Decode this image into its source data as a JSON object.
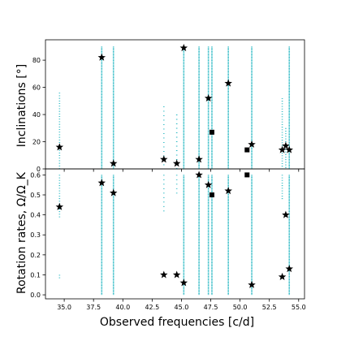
{
  "chart_data": [
    {
      "type": "scatter",
      "panel": "top",
      "ylabel": "Inclinations [°]",
      "xlim": [
        33.4,
        55.5
      ],
      "ylim": [
        0,
        95
      ],
      "yticks": [
        0,
        20,
        40,
        60,
        80
      ],
      "grid": false,
      "colors": {
        "line_points": "#26b7c2",
        "star": "#000000",
        "square": "#000000"
      },
      "dotted_lines": [
        {
          "x": 34.6,
          "ymin": 0,
          "ymax": 56,
          "density": "sparse"
        },
        {
          "x": 38.2,
          "ymin": 0,
          "ymax": 90,
          "density": "dense"
        },
        {
          "x": 39.2,
          "ymin": 0,
          "ymax": 90,
          "density": "dense"
        },
        {
          "x": 43.5,
          "ymin": 0,
          "ymax": 46,
          "density": "very-sparse"
        },
        {
          "x": 44.6,
          "ymin": 0,
          "ymax": 40,
          "density": "very-sparse"
        },
        {
          "x": 45.2,
          "ymin": 0,
          "ymax": 90,
          "density": "dense"
        },
        {
          "x": 46.5,
          "ymin": 0,
          "ymax": 90,
          "density": "dense"
        },
        {
          "x": 47.3,
          "ymin": 0,
          "ymax": 90,
          "density": "dense"
        },
        {
          "x": 47.6,
          "ymin": 0,
          "ymax": 90,
          "density": "dense"
        },
        {
          "x": 49.0,
          "ymin": 0,
          "ymax": 90,
          "density": "dense"
        },
        {
          "x": 51.0,
          "ymin": 0,
          "ymax": 90,
          "density": "dense"
        },
        {
          "x": 53.6,
          "ymin": 0,
          "ymax": 52,
          "density": "sparse"
        },
        {
          "x": 53.9,
          "ymin": 0,
          "ymax": 30,
          "density": "sparse"
        },
        {
          "x": 54.2,
          "ymin": 0,
          "ymax": 90,
          "density": "dense"
        }
      ],
      "stars": [
        {
          "x": 34.6,
          "y": 16
        },
        {
          "x": 38.2,
          "y": 82
        },
        {
          "x": 39.2,
          "y": 4
        },
        {
          "x": 43.5,
          "y": 7
        },
        {
          "x": 44.6,
          "y": 4
        },
        {
          "x": 45.2,
          "y": 89
        },
        {
          "x": 46.5,
          "y": 7
        },
        {
          "x": 47.3,
          "y": 52
        },
        {
          "x": 49.0,
          "y": 63
        },
        {
          "x": 51.0,
          "y": 18
        },
        {
          "x": 53.6,
          "y": 14
        },
        {
          "x": 53.9,
          "y": 17
        },
        {
          "x": 54.2,
          "y": 14
        }
      ],
      "squares": [
        {
          "x": 47.6,
          "y": 27
        },
        {
          "x": 50.6,
          "y": 14
        }
      ]
    },
    {
      "type": "scatter",
      "panel": "bottom",
      "xlabel": "Observed frequencies [c/d]",
      "ylabel": "Rotation rates, Ω/Ω_K",
      "xlim": [
        33.4,
        55.5
      ],
      "ylim": [
        -0.02,
        0.63
      ],
      "yticks": [
        0.0,
        0.1,
        0.2,
        0.3,
        0.4,
        0.5,
        0.6
      ],
      "xticks": [
        35.0,
        37.5,
        40.0,
        42.5,
        45.0,
        47.5,
        50.0,
        52.5,
        55.0
      ],
      "grid": false,
      "dotted_lines": [
        {
          "x": 34.6,
          "ymin": 0.38,
          "ymax": 0.6,
          "density": "sparse"
        },
        {
          "x": 34.6,
          "ymin": 0.08,
          "ymax": 0.1,
          "density": "sparse"
        },
        {
          "x": 38.2,
          "ymin": 0,
          "ymax": 0.6,
          "density": "dense"
        },
        {
          "x": 39.2,
          "ymin": 0,
          "ymax": 0.6,
          "density": "dense"
        },
        {
          "x": 43.5,
          "ymin": 0.4,
          "ymax": 0.6,
          "density": "very-sparse"
        },
        {
          "x": 44.6,
          "ymin": 0.5,
          "ymax": 0.6,
          "density": "very-sparse"
        },
        {
          "x": 45.2,
          "ymin": 0,
          "ymax": 0.6,
          "density": "dense"
        },
        {
          "x": 46.5,
          "ymin": 0,
          "ymax": 0.6,
          "density": "dense"
        },
        {
          "x": 47.3,
          "ymin": 0,
          "ymax": 0.6,
          "density": "dense"
        },
        {
          "x": 47.6,
          "ymin": 0,
          "ymax": 0.6,
          "density": "dense"
        },
        {
          "x": 49.0,
          "ymin": 0,
          "ymax": 0.6,
          "density": "dense"
        },
        {
          "x": 51.0,
          "ymin": 0,
          "ymax": 0.6,
          "density": "dense"
        },
        {
          "x": 53.6,
          "ymin": 0.47,
          "ymax": 0.6,
          "density": "sparse"
        },
        {
          "x": 54.2,
          "ymin": 0,
          "ymax": 0.6,
          "density": "dense"
        }
      ],
      "stars": [
        {
          "x": 34.6,
          "y": 0.44
        },
        {
          "x": 38.2,
          "y": 0.56
        },
        {
          "x": 39.2,
          "y": 0.51
        },
        {
          "x": 43.5,
          "y": 0.1
        },
        {
          "x": 44.6,
          "y": 0.1
        },
        {
          "x": 45.2,
          "y": 0.06
        },
        {
          "x": 46.5,
          "y": 0.6
        },
        {
          "x": 47.3,
          "y": 0.55
        },
        {
          "x": 49.0,
          "y": 0.52
        },
        {
          "x": 51.0,
          "y": 0.05
        },
        {
          "x": 53.6,
          "y": 0.09
        },
        {
          "x": 53.9,
          "y": 0.4
        },
        {
          "x": 54.2,
          "y": 0.13
        }
      ],
      "squares": [
        {
          "x": 47.6,
          "y": 0.5
        },
        {
          "x": 50.6,
          "y": 0.6
        }
      ]
    }
  ],
  "labels": {
    "top_ylabel": "Inclinations [°]",
    "bottom_ylabel": "Rotation rates, Ω/Ω_K",
    "xlabel": "Observed frequencies [c/d]"
  }
}
